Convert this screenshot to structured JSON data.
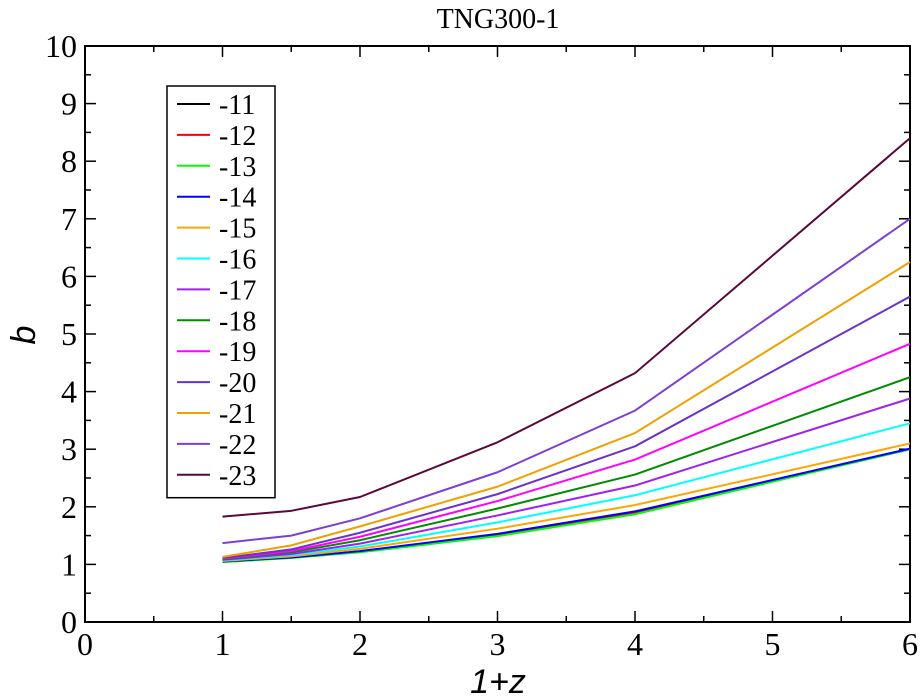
{
  "chart_data": {
    "type": "line",
    "title": "TNG300-1",
    "xlabel": "1+z",
    "ylabel": "b",
    "xlim": [
      0,
      6
    ],
    "ylim": [
      0,
      10
    ],
    "xticks": [
      "0",
      "1",
      "2",
      "3",
      "4",
      "5",
      "6"
    ],
    "yticks": [
      "0",
      "1",
      "2",
      "3",
      "4",
      "5",
      "6",
      "7",
      "8",
      "9",
      "10"
    ],
    "grid": false,
    "legend_position": "top-left",
    "x": [
      1,
      1.5,
      2,
      3,
      4,
      6
    ],
    "series": [
      {
        "name": "-11",
        "color": "#000000",
        "values": [
          1.05,
          1.12,
          1.22,
          1.52,
          1.9,
          3.0
        ]
      },
      {
        "name": "-12",
        "color": "#ff0000",
        "values": [
          1.05,
          1.12,
          1.22,
          1.52,
          1.9,
          3.0
        ]
      },
      {
        "name": "-13",
        "color": "#00ff00",
        "values": [
          1.04,
          1.11,
          1.21,
          1.49,
          1.87,
          3.0
        ]
      },
      {
        "name": "-14",
        "color": "#0000ff",
        "values": [
          1.05,
          1.12,
          1.23,
          1.53,
          1.92,
          3.01
        ]
      },
      {
        "name": "-15",
        "color": "#ffa500",
        "values": [
          1.06,
          1.14,
          1.27,
          1.62,
          2.03,
          3.1
        ]
      },
      {
        "name": "-16",
        "color": "#00ffff",
        "values": [
          1.07,
          1.16,
          1.31,
          1.73,
          2.2,
          3.45
        ]
      },
      {
        "name": "-17",
        "color": "#a020f0",
        "values": [
          1.08,
          1.18,
          1.36,
          1.85,
          2.37,
          3.88
        ]
      },
      {
        "name": "-18",
        "color": "#008b00",
        "values": [
          1.09,
          1.21,
          1.42,
          1.97,
          2.56,
          4.25
        ]
      },
      {
        "name": "-19",
        "color": "#ff00ff",
        "values": [
          1.1,
          1.23,
          1.48,
          2.1,
          2.82,
          4.83
        ]
      },
      {
        "name": "-20",
        "color": "#6a33cc",
        "values": [
          1.11,
          1.26,
          1.55,
          2.22,
          3.05,
          5.65
        ]
      },
      {
        "name": "-21",
        "color": "#f0a000",
        "values": [
          1.13,
          1.33,
          1.66,
          2.35,
          3.28,
          6.25
        ]
      },
      {
        "name": "-22",
        "color": "#7b3fd6",
        "values": [
          1.37,
          1.5,
          1.8,
          2.6,
          3.67,
          7.0
        ]
      },
      {
        "name": "-23",
        "color": "#5a0a3a",
        "values": [
          1.83,
          1.93,
          2.17,
          3.12,
          4.32,
          8.4
        ]
      }
    ]
  }
}
